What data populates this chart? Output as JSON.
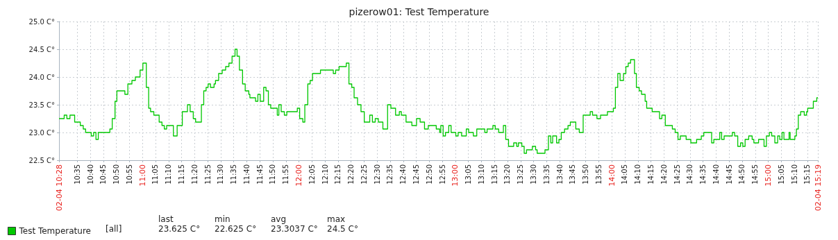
{
  "chart_data": {
    "type": "step",
    "title": "pizerow01: Test Temperature",
    "x": [
      10.467,
      10.5,
      10.517,
      10.537,
      10.567,
      10.603,
      10.622,
      10.637,
      10.673,
      10.688,
      10.703,
      10.718,
      10.792,
      10.807,
      10.825,
      10.837,
      10.888,
      10.907,
      10.933,
      10.955,
      10.985,
      11.003,
      11.025,
      11.04,
      11.052,
      11.073,
      11.107,
      11.125,
      11.14,
      11.155,
      11.198,
      11.222,
      11.255,
      11.288,
      11.305,
      11.325,
      11.34,
      11.377,
      11.392,
      11.407,
      11.42,
      11.435,
      11.458,
      11.467,
      11.487,
      11.51,
      11.532,
      11.553,
      11.573,
      11.592,
      11.605,
      11.62,
      11.64,
      11.657,
      11.68,
      11.687,
      11.723,
      11.738,
      11.753,
      11.775,
      11.79,
      11.805,
      11.82,
      11.862,
      11.872,
      11.887,
      11.907,
      11.923,
      11.99,
      12.005,
      12.025,
      12.038,
      12.057,
      12.072,
      12.087,
      12.138,
      12.22,
      12.235,
      12.257,
      12.303,
      12.32,
      12.338,
      12.353,
      12.375,
      12.397,
      12.418,
      12.453,
      12.47,
      12.488,
      12.508,
      12.537,
      12.567,
      12.588,
      12.618,
      12.642,
      12.655,
      12.685,
      12.722,
      12.752,
      12.775,
      12.803,
      12.827,
      12.878,
      12.9,
      12.907,
      12.922,
      12.937,
      12.958,
      12.973,
      13.003,
      13.018,
      13.04,
      13.07,
      13.085,
      13.115,
      13.137,
      13.188,
      13.203,
      13.24,
      13.255,
      13.277,
      13.307,
      13.322,
      13.34,
      13.373,
      13.392,
      13.403,
      13.425,
      13.44,
      13.455,
      13.492,
      13.513,
      13.523,
      13.573,
      13.595,
      13.61,
      13.622,
      13.647,
      13.662,
      13.677,
      13.698,
      13.72,
      13.735,
      13.77,
      13.792,
      13.817,
      13.862,
      13.877,
      13.905,
      13.928,
      13.972,
      14.01,
      14.023,
      14.038,
      14.053,
      14.075,
      14.09,
      14.105,
      14.12,
      14.145,
      14.157,
      14.175,
      14.19,
      14.213,
      14.223,
      14.258,
      14.305,
      14.32,
      14.342,
      14.387,
      14.405,
      14.423,
      14.438,
      14.475,
      14.505,
      14.542,
      14.572,
      14.588,
      14.638,
      14.652,
      14.69,
      14.702,
      14.718,
      14.77,
      14.785,
      14.805,
      14.823,
      14.837,
      14.852,
      14.875,
      14.897,
      14.908,
      14.938,
      14.973,
      14.988,
      15.007,
      15.022,
      15.042,
      15.06,
      15.073,
      15.088,
      15.1,
      15.133,
      15.14,
      15.17,
      15.18,
      15.192,
      15.207,
      15.23,
      15.245,
      15.252,
      15.288,
      15.31,
      15.317
    ],
    "series": [
      {
        "name": "Test Temperature",
        "color": "#00c800",
        "values": [
          23.25,
          23.3125,
          23.25,
          23.3125,
          23.1875,
          23.125,
          23.0625,
          23.0,
          22.9375,
          23.0,
          22.875,
          23.0,
          23.0625,
          23.25,
          23.5625,
          23.75,
          23.6875,
          23.875,
          23.9375,
          24.0,
          24.125,
          24.25,
          23.8125,
          23.4375,
          23.375,
          23.3125,
          23.1875,
          23.125,
          23.0625,
          23.125,
          22.9375,
          23.125,
          23.375,
          23.5,
          23.375,
          23.25,
          23.1875,
          23.5,
          23.75,
          23.8125,
          23.875,
          23.8125,
          23.875,
          23.9375,
          24.0625,
          24.125,
          24.1875,
          24.25,
          24.375,
          24.5,
          24.375,
          24.125,
          23.875,
          23.75,
          23.6875,
          23.625,
          23.5625,
          23.6875,
          23.5625,
          23.8125,
          23.75,
          23.5,
          23.4375,
          23.3125,
          23.5,
          23.375,
          23.3125,
          23.375,
          23.4375,
          23.25,
          23.1875,
          23.5,
          23.875,
          23.9375,
          24.0625,
          24.125,
          24.0625,
          24.125,
          24.1875,
          24.25,
          23.875,
          23.8125,
          23.625,
          23.5,
          23.375,
          23.1875,
          23.3125,
          23.1875,
          23.25,
          23.1875,
          23.0625,
          23.5,
          23.4375,
          23.3125,
          23.375,
          23.3125,
          23.1875,
          23.125,
          23.25,
          23.1875,
          23.0625,
          23.125,
          23.0625,
          23.0,
          23.125,
          22.9375,
          23.0,
          23.125,
          23.0,
          22.9375,
          23.0,
          22.9375,
          23.0625,
          23.0,
          22.9375,
          23.0625,
          23.0,
          23.0625,
          23.125,
          23.0625,
          23.0,
          23.125,
          22.875,
          22.75,
          22.8125,
          22.75,
          22.8125,
          22.75,
          22.625,
          22.6875,
          22.75,
          22.6875,
          22.625,
          22.6875,
          22.9375,
          22.8125,
          22.9375,
          22.8125,
          22.875,
          23.0,
          23.0625,
          23.125,
          23.1875,
          23.0625,
          23.0,
          23.3125,
          23.375,
          23.3125,
          23.25,
          23.3125,
          23.375,
          23.4375,
          23.8125,
          24.0625,
          23.9375,
          24.0625,
          24.1875,
          24.25,
          24.3125,
          24.0625,
          23.8125,
          23.75,
          23.6875,
          23.5625,
          23.4375,
          23.375,
          23.25,
          23.3125,
          23.125,
          23.0625,
          23.0,
          22.875,
          22.9375,
          22.875,
          22.8125,
          22.875,
          22.9375,
          23.0,
          22.8125,
          22.875,
          23.0,
          22.875,
          22.9375,
          23.0,
          22.9375,
          22.75,
          22.8125,
          22.75,
          22.875,
          22.9375,
          22.875,
          22.8125,
          22.875,
          22.75,
          22.9375,
          23.0,
          22.9375,
          22.8125,
          22.9375,
          22.875,
          23.0,
          22.875,
          23.0,
          22.875,
          22.9375,
          23.0625,
          23.3125,
          23.375,
          23.3125,
          23.375,
          23.4375,
          23.5625,
          23.625,
          23.625
        ]
      }
    ],
    "xlim": [
      10.467,
      15.317
    ],
    "xticks": [
      {
        "value": 10.467,
        "label": "02-04 10:28"
      },
      {
        "value": 10.583,
        "label": "10:35"
      },
      {
        "value": 10.667,
        "label": "10:40"
      },
      {
        "value": 10.75,
        "label": "10:45"
      },
      {
        "value": 10.833,
        "label": "10:50"
      },
      {
        "value": 10.917,
        "label": "10:55"
      },
      {
        "value": 11,
        "label": "11:00"
      },
      {
        "value": 11.083,
        "label": "11:05"
      },
      {
        "value": 11.167,
        "label": "11:10"
      },
      {
        "value": 11.25,
        "label": "11:15"
      },
      {
        "value": 11.333,
        "label": "11:20"
      },
      {
        "value": 11.417,
        "label": "11:25"
      },
      {
        "value": 11.5,
        "label": "11:30"
      },
      {
        "value": 11.583,
        "label": "11:35"
      },
      {
        "value": 11.667,
        "label": "11:40"
      },
      {
        "value": 11.75,
        "label": "11:45"
      },
      {
        "value": 11.833,
        "label": "11:50"
      },
      {
        "value": 11.917,
        "label": "11:55"
      },
      {
        "value": 12,
        "label": "12:00"
      },
      {
        "value": 12.083,
        "label": "12:05"
      },
      {
        "value": 12.167,
        "label": "12:10"
      },
      {
        "value": 12.25,
        "label": "12:15"
      },
      {
        "value": 12.333,
        "label": "12:20"
      },
      {
        "value": 12.417,
        "label": "12:25"
      },
      {
        "value": 12.5,
        "label": "12:30"
      },
      {
        "value": 12.583,
        "label": "12:35"
      },
      {
        "value": 12.667,
        "label": "12:40"
      },
      {
        "value": 12.75,
        "label": "12:45"
      },
      {
        "value": 12.833,
        "label": "12:50"
      },
      {
        "value": 12.917,
        "label": "12:55"
      },
      {
        "value": 13,
        "label": "13:00"
      },
      {
        "value": 13.083,
        "label": "13:05"
      },
      {
        "value": 13.167,
        "label": "13:10"
      },
      {
        "value": 13.25,
        "label": "13:15"
      },
      {
        "value": 13.333,
        "label": "13:20"
      },
      {
        "value": 13.417,
        "label": "13:25"
      },
      {
        "value": 13.5,
        "label": "13:30"
      },
      {
        "value": 13.583,
        "label": "13:35"
      },
      {
        "value": 13.667,
        "label": "13:40"
      },
      {
        "value": 13.75,
        "label": "13:45"
      },
      {
        "value": 13.833,
        "label": "13:50"
      },
      {
        "value": 13.917,
        "label": "13:55"
      },
      {
        "value": 14,
        "label": "14:00"
      },
      {
        "value": 14.083,
        "label": "14:05"
      },
      {
        "value": 14.167,
        "label": "14:10"
      },
      {
        "value": 14.25,
        "label": "14:15"
      },
      {
        "value": 14.333,
        "label": "14:20"
      },
      {
        "value": 14.417,
        "label": "14:25"
      },
      {
        "value": 14.5,
        "label": "14:30"
      },
      {
        "value": 14.583,
        "label": "14:35"
      },
      {
        "value": 14.667,
        "label": "14:40"
      },
      {
        "value": 14.75,
        "label": "14:45"
      },
      {
        "value": 14.833,
        "label": "14:50"
      },
      {
        "value": 14.917,
        "label": "14:55"
      },
      {
        "value": 15,
        "label": "15:00"
      },
      {
        "value": 15.083,
        "label": "15:05"
      },
      {
        "value": 15.167,
        "label": "15:10"
      },
      {
        "value": 15.25,
        "label": "15:15"
      },
      {
        "value": 15.317,
        "label": "02-04 15:19"
      }
    ],
    "ylim": [
      22.5,
      25
    ],
    "yticks": [
      {
        "value": 22.5,
        "label": "22.5 C°"
      },
      {
        "value": 23,
        "label": "23.0 C°"
      },
      {
        "value": 23.5,
        "label": "23.5 C°"
      },
      {
        "value": 24,
        "label": "24.0 C°"
      },
      {
        "value": 24.5,
        "label": "24.5 C°"
      },
      {
        "value": 25,
        "label": "25.0 C°"
      }
    ],
    "grid": true,
    "legend": "bottom left",
    "annotations": [
      "[all]",
      "last",
      "23.625 C°",
      "min",
      "22.625 C°",
      "avg",
      "23.3037 C°",
      "max",
      "24.5 C°"
    ]
  }
}
